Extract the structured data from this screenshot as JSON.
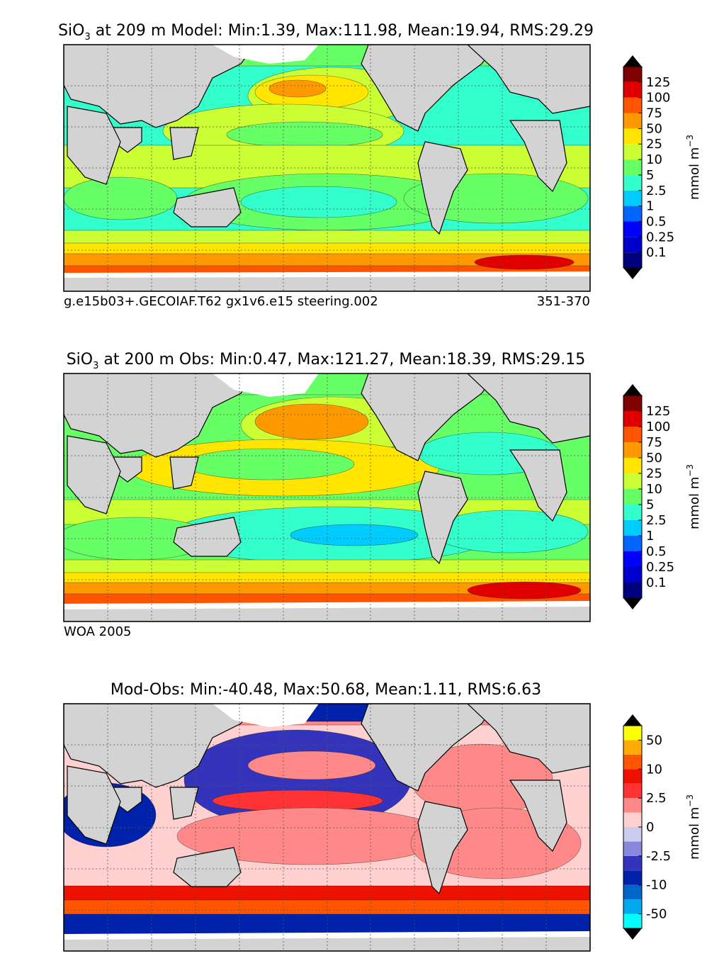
{
  "chart_data": [
    {
      "type": "heatmap",
      "id": "model",
      "title_var": "SiO",
      "title_sub": "3",
      "title_rest": " at 209 m Model: Min:1.39, Max:111.98, Mean:19.94, RMS:29.29",
      "stats": {
        "depth_m": 209,
        "min": 1.39,
        "max": 111.98,
        "mean": 19.94,
        "rms": 29.29
      },
      "left_caption": "g.e15b03+.GECOIAF.T62 gx1v6.e15 steering.002",
      "right_caption": "351-370",
      "colorbar": {
        "label": "mmol m",
        "label_exp": "−3",
        "levels": [
          "0.1",
          "0.25",
          "0.5",
          "1",
          "2.5",
          "5",
          "10",
          "25",
          "50",
          "75",
          "100",
          "125"
        ],
        "colors": [
          "#00007f",
          "#0000cd",
          "#0000ff",
          "#0066ff",
          "#00ccff",
          "#33ffcc",
          "#66ff66",
          "#ccff33",
          "#ffe500",
          "#ff9900",
          "#ff5500",
          "#e00000",
          "#7f0000"
        ],
        "under_color": "#000000",
        "over_color": "#000000"
      }
    },
    {
      "type": "heatmap",
      "id": "obs",
      "title_var": "SiO",
      "title_sub": "3",
      "title_rest": " at 200 m Obs: Min:0.47, Max:121.27, Mean:18.39, RMS:29.15",
      "stats": {
        "depth_m": 200,
        "min": 0.47,
        "max": 121.27,
        "mean": 18.39,
        "rms": 29.15
      },
      "left_caption": "WOA 2005",
      "right_caption": "",
      "colorbar": {
        "label": "mmol m",
        "label_exp": "−3",
        "levels": [
          "0.1",
          "0.25",
          "0.5",
          "1",
          "2.5",
          "5",
          "10",
          "25",
          "50",
          "75",
          "100",
          "125"
        ],
        "colors": [
          "#00007f",
          "#0000cd",
          "#0000ff",
          "#0066ff",
          "#00ccff",
          "#33ffcc",
          "#66ff66",
          "#ccff33",
          "#ffe500",
          "#ff9900",
          "#ff5500",
          "#e00000",
          "#7f0000"
        ],
        "under_color": "#000000",
        "over_color": "#000000"
      }
    },
    {
      "type": "heatmap",
      "id": "diff",
      "title_var": "",
      "title_sub": "",
      "title_rest": "Mod-Obs: Min:-40.48, Max:50.68, Mean:1.11, RMS:6.63",
      "stats": {
        "min": -40.48,
        "max": 50.68,
        "mean": 1.11,
        "rms": 6.63
      },
      "left_caption": "",
      "right_caption": "",
      "colorbar": {
        "label": "mmol m",
        "label_exp": "−3",
        "tick_labels": [
          "-50",
          "-10",
          "-2.5",
          "0",
          "2.5",
          "10",
          "50"
        ],
        "colors": [
          "#00ffff",
          "#00aaee",
          "#0066cc",
          "#0022aa",
          "#3333bb",
          "#8888dd",
          "#ccccee",
          "#ffd0d0",
          "#ff8888",
          "#ff3333",
          "#ee1100",
          "#ff5500",
          "#ffaa00",
          "#ffff00"
        ],
        "under_color": "#000000",
        "over_color": "#000000"
      }
    }
  ],
  "map_colors": {
    "land": "#d3d3d3",
    "sea_ice": "#ffffff",
    "coast": "#000000",
    "grid": "#555555"
  }
}
